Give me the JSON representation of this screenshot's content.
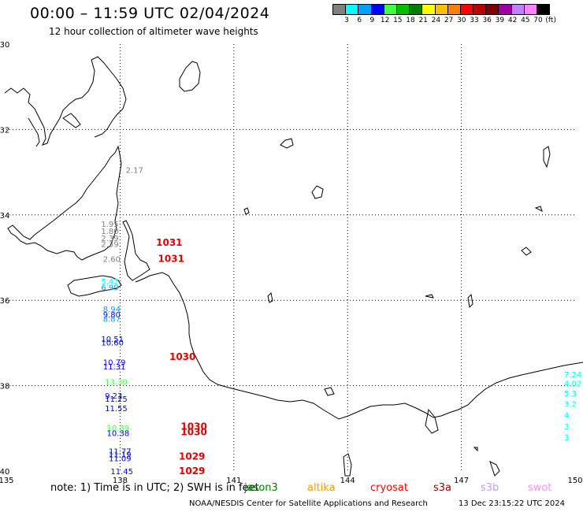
{
  "header": {
    "title": "00:00 – 11:59 UTC 02/04/2024",
    "subtitle": "12 hour collection of altimeter wave heights"
  },
  "legend": {
    "colors": [
      "#808080",
      "#00ffff",
      "#00a0ff",
      "#0000ff",
      "#40ff40",
      "#00c000",
      "#008000",
      "#ffff00",
      "#ffc000",
      "#ff8000",
      "#ff0000",
      "#c00000",
      "#800000",
      "#a000a0",
      "#c080ff",
      "#ff80ff",
      "#000000"
    ],
    "labels": [
      "3",
      "6",
      "9",
      "12",
      "15",
      "18",
      "21",
      "24",
      "27",
      "30",
      "33",
      "36",
      "39",
      "42",
      "45",
      "70",
      "(ft)"
    ]
  },
  "map": {
    "lon_range": [
      135,
      150
    ],
    "lat_range": [
      -40,
      -30
    ],
    "lon_ticks": [
      "135",
      "138",
      "141",
      "144",
      "147",
      "150"
    ],
    "lat_ticks": [
      "-30",
      "-32",
      "-34",
      "-36",
      "-38",
      "-40"
    ]
  },
  "observations": [
    {
      "lon": 138.15,
      "lat": -33.02,
      "text": "2.17",
      "color": "#808080"
    },
    {
      "lon": 137.5,
      "lat": -34.28,
      "text": "1.95",
      "color": "#808080"
    },
    {
      "lon": 137.5,
      "lat": -34.45,
      "text": "1.80",
      "color": "#808080"
    },
    {
      "lon": 137.5,
      "lat": -34.61,
      "text": "2.39",
      "color": "#808080"
    },
    {
      "lon": 137.5,
      "lat": -34.75,
      "text": "2.39",
      "color": "#808080"
    },
    {
      "lon": 137.55,
      "lat": -35.1,
      "text": "2.60",
      "color": "#808080"
    },
    {
      "lon": 137.5,
      "lat": -35.63,
      "text": "5.42",
      "color": "#00ffff"
    },
    {
      "lon": 137.5,
      "lat": -35.77,
      "text": "6.99",
      "color": "#00a0ff"
    },
    {
      "lon": 137.55,
      "lat": -36.27,
      "text": "8.94",
      "color": "#00a0ff"
    },
    {
      "lon": 137.55,
      "lat": -36.4,
      "text": "9.80",
      "color": "#0000ff"
    },
    {
      "lon": 137.55,
      "lat": -36.5,
      "text": "8.87",
      "color": "#00a0ff"
    },
    {
      "lon": 137.5,
      "lat": -36.97,
      "text": "10.51",
      "color": "#0000ff"
    },
    {
      "lon": 137.5,
      "lat": -37.06,
      "text": "10.60",
      "color": "#0000ff"
    },
    {
      "lon": 137.55,
      "lat": -37.52,
      "text": "10.79",
      "color": "#0000ff"
    },
    {
      "lon": 137.55,
      "lat": -37.62,
      "text": "11.31",
      "color": "#0000ff"
    },
    {
      "lon": 137.6,
      "lat": -37.98,
      "text": "13.30",
      "color": "#40ff40"
    },
    {
      "lon": 137.6,
      "lat": -38.3,
      "text": "9.23",
      "color": "#0000ff"
    },
    {
      "lon": 137.6,
      "lat": -38.38,
      "text": "11.25",
      "color": "#0000ff"
    },
    {
      "lon": 137.6,
      "lat": -38.6,
      "text": "11.55",
      "color": "#0000ff"
    },
    {
      "lon": 137.65,
      "lat": -39.06,
      "text": "10.39",
      "color": "#40ff40"
    },
    {
      "lon": 137.65,
      "lat": -39.18,
      "text": "10.38",
      "color": "#0000ff"
    },
    {
      "lon": 137.7,
      "lat": -39.6,
      "text": "11.77",
      "color": "#0000ff"
    },
    {
      "lon": 137.7,
      "lat": -39.68,
      "text": "11.19",
      "color": "#0000ff"
    },
    {
      "lon": 137.7,
      "lat": -39.77,
      "text": "11.09",
      "color": "#0000ff"
    },
    {
      "lon": 137.75,
      "lat": -40.07,
      "text": "11.45",
      "color": "#0000ff"
    },
    {
      "lon": 150.0,
      "lat": -37.8,
      "text": "7.24",
      "color": "#00ffff"
    },
    {
      "lon": 150.0,
      "lat": -38.02,
      "text": "4.02",
      "color": "#00ffff"
    },
    {
      "lon": 150.0,
      "lat": -38.25,
      "text": "5.3",
      "color": "#00ffff"
    },
    {
      "lon": 150.0,
      "lat": -38.5,
      "text": "3.2",
      "color": "#00ffff"
    },
    {
      "lon": 150.0,
      "lat": -38.75,
      "text": "4.",
      "color": "#00ffff"
    },
    {
      "lon": 150.0,
      "lat": -39.02,
      "text": "3.",
      "color": "#00ffff"
    },
    {
      "lon": 150.0,
      "lat": -39.28,
      "text": "3",
      "color": "#00ffff"
    }
  ],
  "pressure_labels": [
    {
      "lon": 138.95,
      "lat": -34.72,
      "text": "1031"
    },
    {
      "lon": 139.0,
      "lat": -35.1,
      "text": "1031"
    },
    {
      "lon": 139.3,
      "lat": -37.4,
      "text": "1030"
    },
    {
      "lon": 139.6,
      "lat": -39.03,
      "text": "1030"
    },
    {
      "lon": 139.6,
      "lat": -39.16,
      "text": "1030"
    },
    {
      "lon": 139.55,
      "lat": -39.73,
      "text": "1029"
    },
    {
      "lon": 139.55,
      "lat": -40.07,
      "text": "1029"
    }
  ],
  "footer": {
    "note": "note:  1) Time is in UTC;  2) SWH is in feet",
    "satellites": [
      {
        "name": "jason3",
        "color": "#008000"
      },
      {
        "name": "altika",
        "color": "#ff9900"
      },
      {
        "name": "cryosat",
        "color": "#ff0000"
      },
      {
        "name": "s3a",
        "color": "#a00000"
      },
      {
        "name": "s3b",
        "color": "#c0a0ff"
      },
      {
        "name": "swot",
        "color": "#ff90ff"
      }
    ],
    "credit": "NOAA/NESDIS Center for Satellite Applications and Research",
    "timestamp": "13 Dec 23:15:22 UTC 2024"
  }
}
